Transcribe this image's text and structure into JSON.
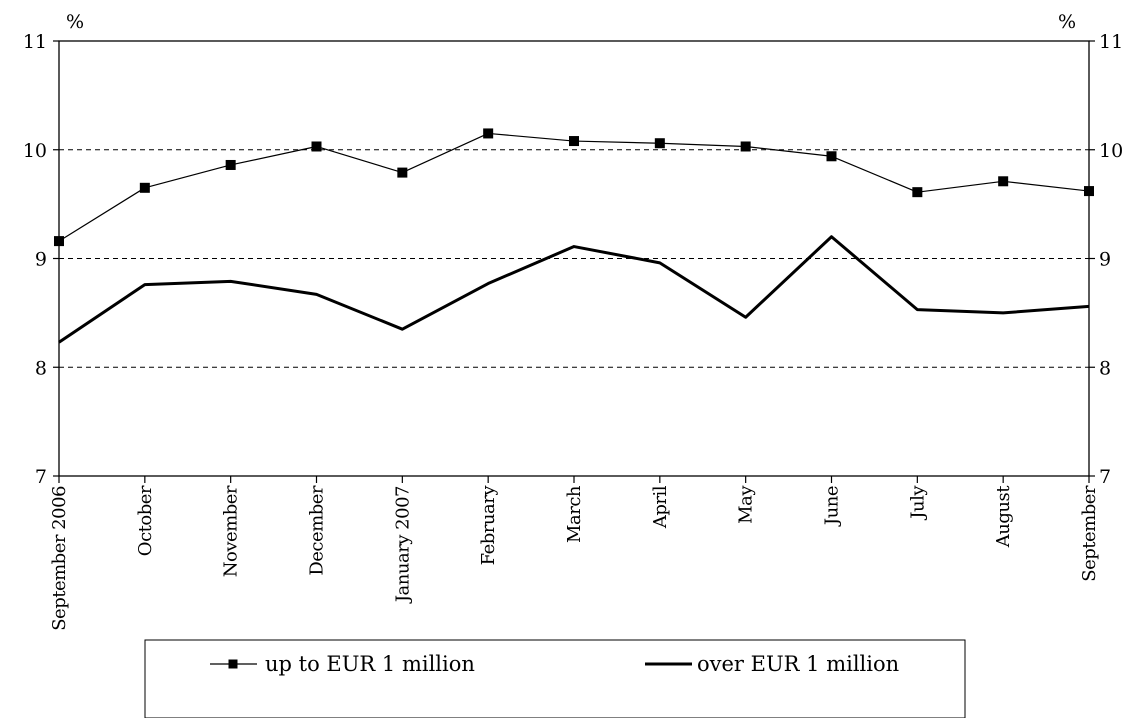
{
  "chart_data": {
    "type": "line",
    "title": "",
    "xlabel": "",
    "ylabel": "%",
    "ylabel_right": "%",
    "ylim": [
      7,
      11
    ],
    "yticks": [
      7,
      8,
      9,
      10,
      11
    ],
    "grid": "horizontal dashed at 8, 9, 10",
    "legend_position": "bottom",
    "categories": [
      "September 2006",
      "October",
      "November",
      "December",
      "January 2007",
      "February",
      "March",
      "April",
      "May",
      "June",
      "July",
      "August",
      "September"
    ],
    "series": [
      {
        "name": "up to EUR 1 million",
        "marker": "square",
        "color": "#000000",
        "values": [
          9.16,
          9.65,
          9.86,
          10.03,
          9.79,
          10.15,
          10.08,
          10.06,
          10.03,
          9.94,
          9.61,
          9.71,
          9.62
        ]
      },
      {
        "name": "over EUR 1 million",
        "marker": "none",
        "color": "#000000",
        "values": [
          8.23,
          8.76,
          8.79,
          8.67,
          8.35,
          8.77,
          9.11,
          8.96,
          8.46,
          9.2,
          8.53,
          8.5,
          8.56
        ]
      }
    ]
  }
}
